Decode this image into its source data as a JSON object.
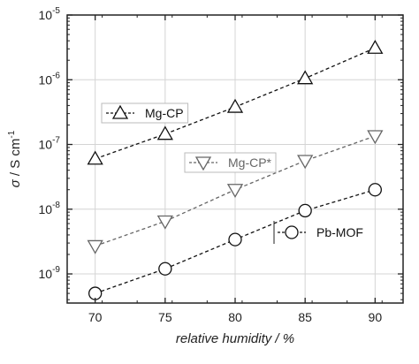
{
  "chart_data": {
    "type": "scatter",
    "xlabel": "relative humidity / %",
    "ylabel_parts": {
      "sigma": "σ",
      "rest": " / S cm",
      "exp": "-1"
    },
    "x_ticks": [
      "70",
      "75",
      "80",
      "85",
      "90"
    ],
    "y_ticks": [
      {
        "base": "10",
        "exp": "-9"
      },
      {
        "base": "10",
        "exp": "-8"
      },
      {
        "base": "10",
        "exp": "-7"
      },
      {
        "base": "10",
        "exp": "-6"
      },
      {
        "base": "10",
        "exp": "-5"
      }
    ],
    "x_range": [
      68,
      92
    ],
    "y_log_range": [
      -9.45,
      -5.0
    ],
    "y_scale": "log",
    "grid": true,
    "series": [
      {
        "name": "Mg-CP",
        "marker": "triangle-up",
        "color": "#111111",
        "line_color": "#111111",
        "x": [
          70,
          75,
          80,
          85,
          90
        ],
        "y": [
          6e-08,
          1.45e-07,
          3.8e-07,
          1.05e-06,
          3.1e-06
        ]
      },
      {
        "name": "Mg-CP*",
        "marker": "triangle-down",
        "color": "#666666",
        "line_color": "#666666",
        "x": [
          70,
          75,
          80,
          85,
          90
        ],
        "y": [
          2.7e-09,
          6.5e-09,
          2e-08,
          5.6e-08,
          1.35e-07
        ]
      },
      {
        "name": "Pb-MOF",
        "marker": "circle",
        "color": "#111111",
        "line_color": "#111111",
        "x": [
          70,
          75,
          80,
          85,
          90
        ],
        "y": [
          5e-10,
          1.2e-09,
          3.4e-09,
          9.5e-09,
          2e-08
        ]
      }
    ],
    "legend_entries": [
      {
        "label": "Mg-CP",
        "series": 0
      },
      {
        "label": "Mg-CP*",
        "series": 1
      },
      {
        "label": "Pb-MOF",
        "series": 2
      }
    ]
  }
}
